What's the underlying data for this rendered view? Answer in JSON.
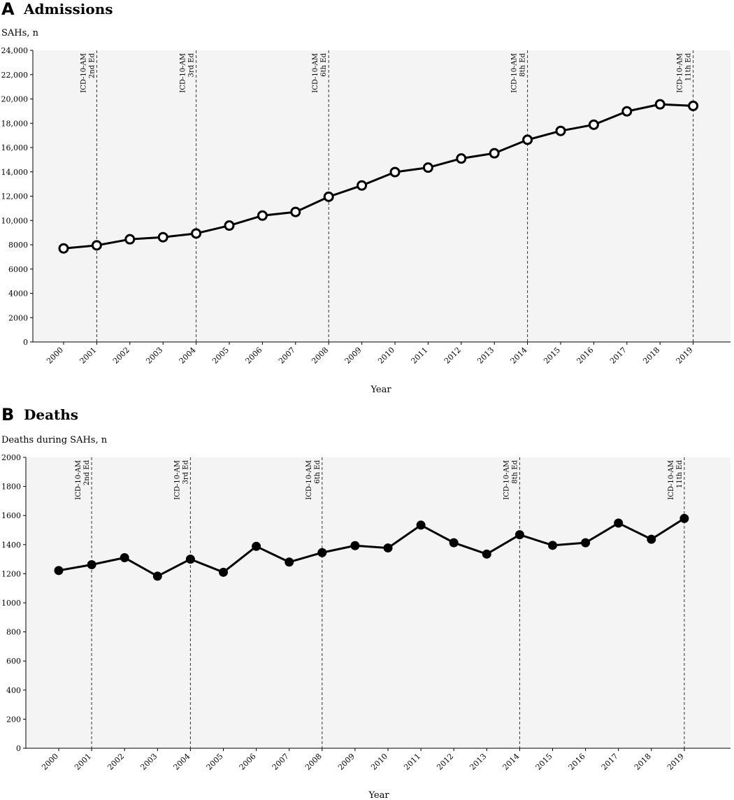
{
  "chart_data": [
    {
      "type": "line",
      "panel": "A",
      "title": "Admissions",
      "ylabel": "SAHs, n",
      "xlabel": "Year",
      "marker": "open-circle",
      "categories": [
        "2000",
        "2001",
        "2002",
        "2003",
        "2004",
        "2005",
        "2006",
        "2007",
        "2008",
        "2009",
        "2010",
        "2011",
        "2012",
        "2013",
        "2014",
        "2015",
        "2016",
        "2017",
        "2018",
        "2019"
      ],
      "values": [
        7700,
        7950,
        8450,
        8620,
        8930,
        9580,
        10400,
        10700,
        11950,
        12880,
        13980,
        14350,
        15100,
        15530,
        16640,
        17370,
        17880,
        18980,
        19560,
        19430
      ],
      "ylim": [
        0,
        24000
      ],
      "yticks": [
        "0",
        "2000",
        "4000",
        "6000",
        "8000",
        "10,000",
        "12,000",
        "14,000",
        "16,000",
        "18,000",
        "20,000",
        "22,000",
        "24,000"
      ],
      "ytick_values": [
        0,
        2000,
        4000,
        6000,
        8000,
        10000,
        12000,
        14000,
        16000,
        18000,
        20000,
        22000,
        24000
      ],
      "annotations": [
        {
          "year": "2001",
          "line1": "ICD-10-AM",
          "line2": "2nd Ed"
        },
        {
          "year": "2004",
          "line1": "ICD-10-AM",
          "line2": "3rd Ed"
        },
        {
          "year": "2008",
          "line1": "ICD-10-AM",
          "line2": "6th Ed"
        },
        {
          "year": "2014",
          "line1": "ICD-10-AM",
          "line2": "8th Ed"
        },
        {
          "year": "2019",
          "line1": "ICD-10-AM",
          "line2": "11th Ed"
        }
      ],
      "grid": false,
      "background": "#f4f4f4"
    },
    {
      "type": "line",
      "panel": "B",
      "title": "Deaths",
      "ylabel": "Deaths during SAHs, n",
      "xlabel": "Year",
      "marker": "filled-circle",
      "categories": [
        "2000",
        "2001",
        "2002",
        "2003",
        "2004",
        "2005",
        "2006",
        "2007",
        "2008",
        "2009",
        "2010",
        "2011",
        "2012",
        "2013",
        "2014",
        "2015",
        "2016",
        "2017",
        "2018",
        "2019"
      ],
      "values": [
        1222,
        1262,
        1310,
        1183,
        1300,
        1210,
        1388,
        1280,
        1345,
        1393,
        1377,
        1534,
        1413,
        1335,
        1468,
        1395,
        1413,
        1548,
        1437,
        1580
      ],
      "ylim": [
        0,
        2000
      ],
      "yticks": [
        "0",
        "200",
        "400",
        "600",
        "800",
        "1000",
        "1200",
        "1400",
        "1600",
        "1800",
        "2000"
      ],
      "ytick_values": [
        0,
        200,
        400,
        600,
        800,
        1000,
        1200,
        1400,
        1600,
        1800,
        2000
      ],
      "annotations": [
        {
          "year": "2001",
          "line1": "ICD-10-AM",
          "line2": "2nd Ed"
        },
        {
          "year": "2004",
          "line1": "ICD-10-AM",
          "line2": "3rd Ed"
        },
        {
          "year": "2008",
          "line1": "ICD-10-AM",
          "line2": "6th Ed"
        },
        {
          "year": "2014",
          "line1": "ICD-10-AM",
          "line2": "8th Ed"
        },
        {
          "year": "2019",
          "line1": "ICD-10-AM",
          "line2": "11th Ed"
        }
      ],
      "grid": false,
      "background": "#f4f4f4"
    }
  ]
}
